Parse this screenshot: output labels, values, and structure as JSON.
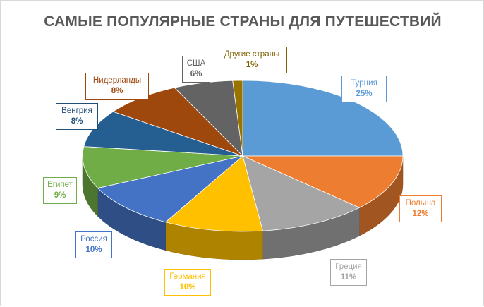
{
  "chart_data": {
    "type": "pie",
    "title": "САМЫЕ ПОПУЛЯРНЫЕ СТРАНЫ ДЛЯ ПУТЕШЕСТВИЙ",
    "three_d": true,
    "legend": "none",
    "categories": [
      "Турция",
      "Польша",
      "Греция",
      "Германия",
      "Россия",
      "Египет",
      "Венгрия",
      "Нидерланды",
      "США",
      "Другие страны"
    ],
    "values": [
      25,
      12,
      11,
      10,
      10,
      9,
      8,
      8,
      6,
      1
    ],
    "value_labels": [
      "25%",
      "12%",
      "11%",
      "10%",
      "10%",
      "9%",
      "8%",
      "8%",
      "6%",
      "1%"
    ],
    "colors": [
      "#5b9bd5",
      "#ed7d31",
      "#a5a5a5",
      "#ffc000",
      "#4472c4",
      "#70ad47",
      "#255e91",
      "#9e480e",
      "#636363",
      "#997300"
    ],
    "label_colors": [
      "#5b9bd5",
      "#ed7d31",
      "#a5a5a5",
      "#ffc000",
      "#4472c4",
      "#70ad47",
      "#1f4e79",
      "#9e480e",
      "#636363",
      "#7f6000"
    ]
  }
}
